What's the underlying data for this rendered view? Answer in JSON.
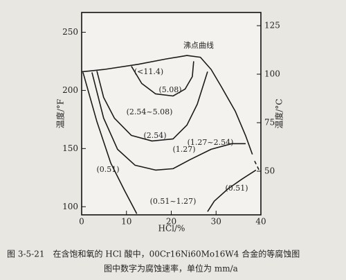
{
  "chart_data": {
    "type": "line",
    "xlabel": "HCl/%",
    "ylabel": "温度/°F",
    "y2label": "温度/°C",
    "xlim": [
      0,
      40
    ],
    "xticks": [
      0,
      10,
      20,
      30,
      40
    ],
    "ylim": [
      93,
      267
    ],
    "yticks": [
      100,
      150,
      200,
      250
    ],
    "y2lim": [
      27.5,
      131.8
    ],
    "y2ticks": [
      50,
      75,
      100,
      125
    ],
    "color": "#1a1a1a",
    "series": [
      {
        "x": [
          0,
          5,
          12.7,
          18.8,
          23.5,
          26.5,
          28.9,
          31.2,
          34.3,
          36.6,
          38.1
        ],
        "values": [
          216,
          218,
          222.5,
          227,
          230,
          228.5,
          218,
          203,
          182,
          161,
          145
        ]
      },
      {
        "x": [
          38.6,
          39.8
        ],
        "values": [
          139.3,
          129.8
        ],
        "dashed": true
      },
      {
        "x": [
          11.1,
          13.4,
          16.5,
          20.4,
          23.1,
          24.7,
          25.0
        ],
        "values": [
          220.8,
          206,
          197,
          195.2,
          201.2,
          211.9,
          225
        ]
      },
      {
        "x": [
          3.4,
          4.9,
          7.3,
          11.1,
          15.7,
          20.4,
          23.5,
          25.8,
          28.1
        ],
        "values": [
          216.7,
          194,
          176.2,
          161.3,
          156.5,
          158.3,
          170.2,
          188.1,
          216.1
        ]
      },
      {
        "x": [
          2.3,
          4.9,
          8,
          11.9,
          16.5,
          20.4,
          24.2,
          28.9,
          33.5,
          36.6
        ],
        "values": [
          215.5,
          176.2,
          149.4,
          135.7,
          131.5,
          132.7,
          140.5,
          149.4,
          154.2,
          154.2
        ]
      },
      {
        "x": [
          0.3,
          3.4,
          6.5,
          9.6,
          12.3
        ],
        "values": [
          215.5,
          173.2,
          137.5,
          113.7,
          94
        ]
      },
      {
        "x": [
          28.1,
          29.6,
          32.7,
          35.8,
          38.9
        ],
        "values": [
          95.8,
          104.8,
          115.5,
          123.8,
          131.5
        ]
      }
    ],
    "annotations": [
      "沸点曲线",
      "(<11.4)",
      "(5.08)",
      "(2.54~5.08)",
      "(2.54)",
      "(1.27~2.54)",
      "(1.27)",
      "(0.51)",
      "(0.51~1.27)",
      "(0.51)"
    ],
    "caption": [
      "图 3-5-21　在含饱和氧的 HCl 酸中，00Cr16Ni60Mo16W4 合金的等腐蚀图",
      "图中数字为腐蚀速率，单位为 mm/a"
    ]
  }
}
